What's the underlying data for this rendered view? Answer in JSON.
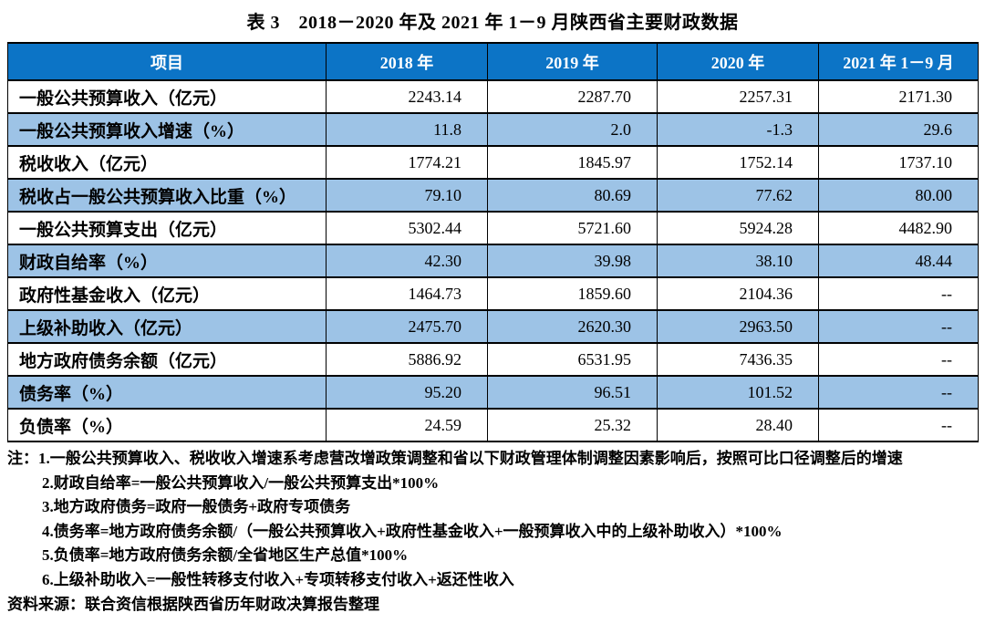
{
  "title": "表 3　2018－2020 年及 2021 年 1－9 月陕西省主要财政数据",
  "colors": {
    "header_bg": "#0c74c6",
    "header_text": "#ffffff",
    "shaded_row_bg": "#9dc3e6",
    "border": "#000000"
  },
  "table": {
    "columns": [
      "项目",
      "2018 年",
      "2019 年",
      "2020 年",
      "2021 年 1－9 月"
    ],
    "rows": [
      {
        "label": "一般公共预算收入（亿元）",
        "values": [
          "2243.14",
          "2287.70",
          "2257.31",
          "2171.30"
        ],
        "shaded": false
      },
      {
        "label": "一般公共预算收入增速（%）",
        "values": [
          "11.8",
          "2.0",
          "-1.3",
          "29.6"
        ],
        "shaded": true
      },
      {
        "label": "税收收入（亿元）",
        "values": [
          "1774.21",
          "1845.97",
          "1752.14",
          "1737.10"
        ],
        "shaded": false
      },
      {
        "label": "税收占一般公共预算收入比重（%）",
        "values": [
          "79.10",
          "80.69",
          "77.62",
          "80.00"
        ],
        "shaded": true
      },
      {
        "label": "一般公共预算支出（亿元）",
        "values": [
          "5302.44",
          "5721.60",
          "5924.28",
          "4482.90"
        ],
        "shaded": false
      },
      {
        "label": "财政自给率（%）",
        "values": [
          "42.30",
          "39.98",
          "38.10",
          "48.44"
        ],
        "shaded": true
      },
      {
        "label": "政府性基金收入（亿元）",
        "values": [
          "1464.73",
          "1859.60",
          "2104.36",
          "--"
        ],
        "shaded": false
      },
      {
        "label": "上级补助收入（亿元）",
        "values": [
          "2475.70",
          "2620.30",
          "2963.50",
          "--"
        ],
        "shaded": true
      },
      {
        "label": "地方政府债务余额（亿元）",
        "values": [
          "5886.92",
          "6531.95",
          "7436.35",
          "--"
        ],
        "shaded": false
      },
      {
        "label": "债务率（%）",
        "values": [
          "95.20",
          "96.51",
          "101.52",
          "--"
        ],
        "shaded": true
      },
      {
        "label": "负债率（%）",
        "values": [
          "24.59",
          "25.32",
          "28.40",
          "--"
        ],
        "shaded": false
      }
    ]
  },
  "notes": [
    "注：1.一般公共预算收入、税收收入增速系考虑营改增政策调整和省以下财政管理体制调整因素影响后，按照可比口径调整后的增速",
    "2.财政自给率=一般公共预算收入/一般公共预算支出*100%",
    "3.地方政府债务=政府一般债务+政府专项债务",
    "4.债务率=地方政府债务余额/（一般公共预算收入+政府性基金收入+一般预算收入中的上级补助收入）*100%",
    "5.负债率=地方政府债务余额/全省地区生产总值*100%",
    "6.上级补助收入=一般性转移支付收入+专项转移支付收入+返还性收入"
  ],
  "source": "资料来源：联合资信根据陕西省历年财政决算报告整理"
}
